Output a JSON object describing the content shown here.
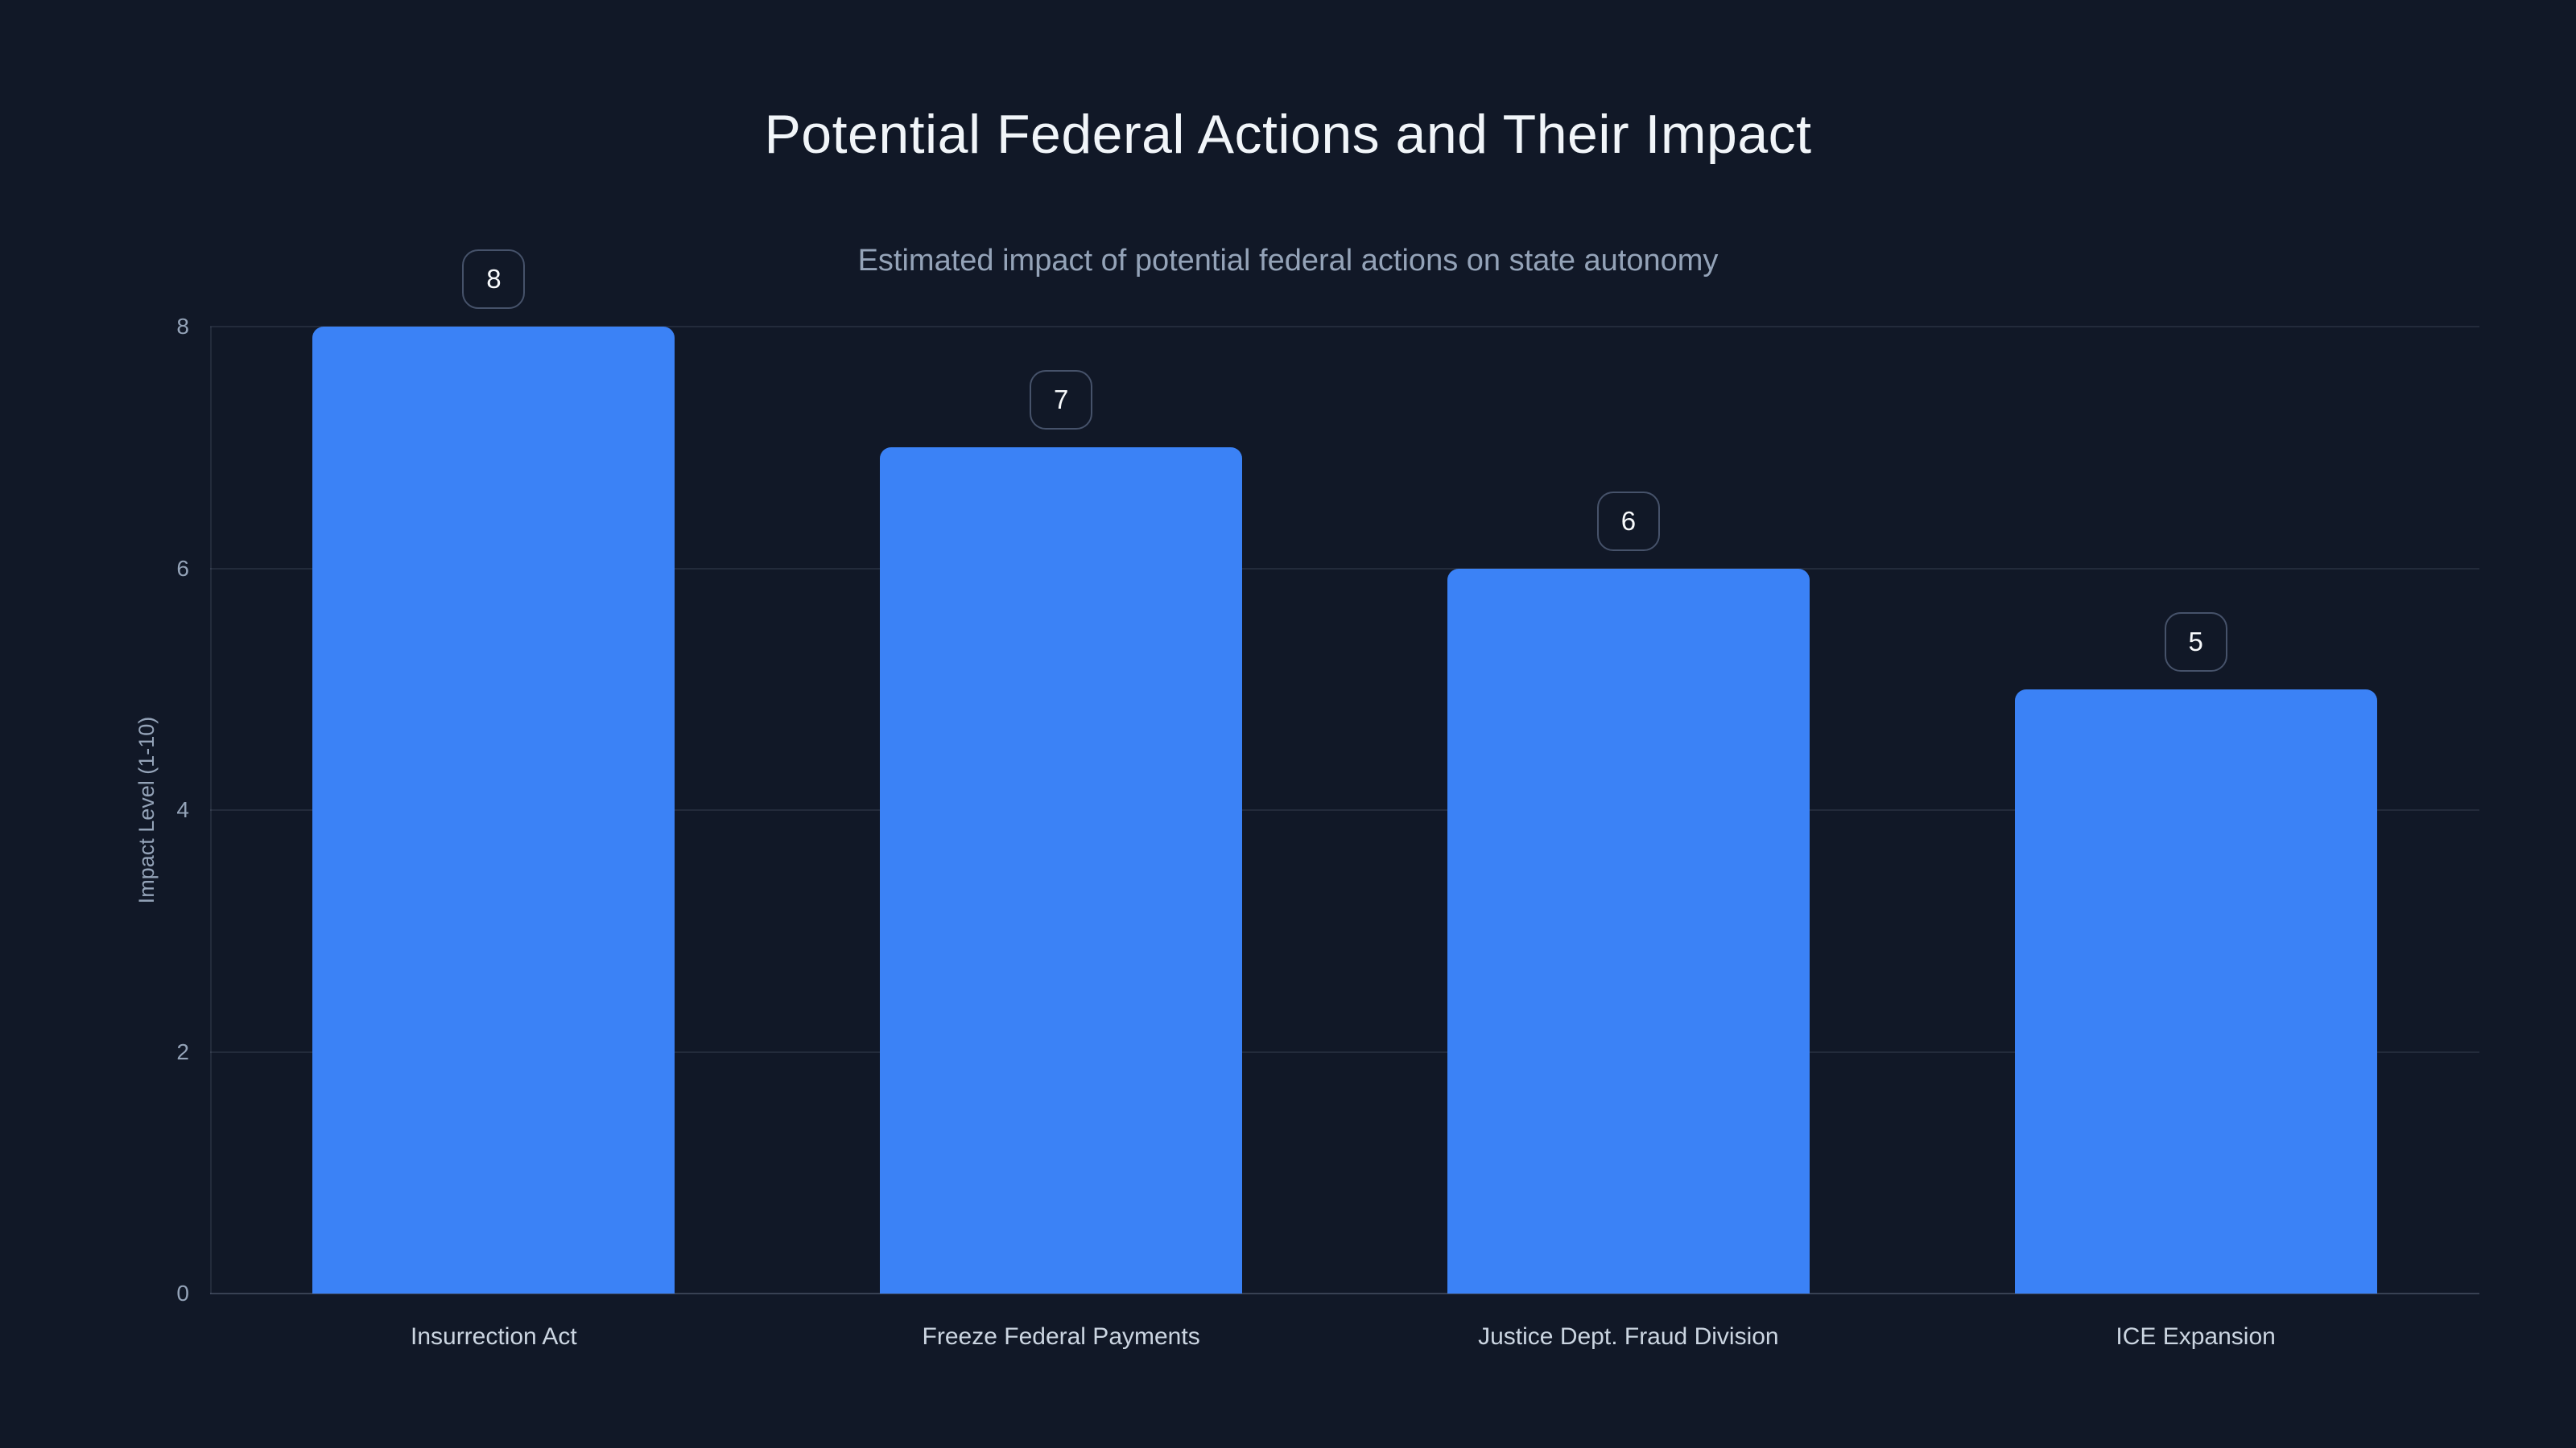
{
  "page": {
    "background": "#111827"
  },
  "chart_data": {
    "type": "bar",
    "title": "Potential Federal Actions and Their Impact",
    "subtitle": "Estimated impact of potential federal actions on state autonomy",
    "xlabel": "",
    "ylabel": "Impact Level (1-10)",
    "categories": [
      "Insurrection Act",
      "Freeze Federal Payments",
      "Justice Dept. Fraud Division",
      "ICE Expansion"
    ],
    "values": [
      8,
      7,
      6,
      5
    ],
    "value_labels": [
      "8",
      "7",
      "6",
      "5"
    ],
    "ylim": [
      0,
      8
    ],
    "yticks": [
      0,
      2,
      4,
      6,
      8
    ],
    "grid": true,
    "legend": false,
    "bar_color": "#3b82f6",
    "colors": {
      "background": "#111827",
      "title": "#f1f5f9",
      "subtitle": "#94a3b8",
      "tick_label": "#94a3b8",
      "category_label": "#cbd5e1",
      "gridline": "rgba(148,163,184,0.14)",
      "axis_line": "rgba(148,163,184,0.30)",
      "badge_border": "#46526a",
      "badge_text": "#f8fafc"
    }
  }
}
